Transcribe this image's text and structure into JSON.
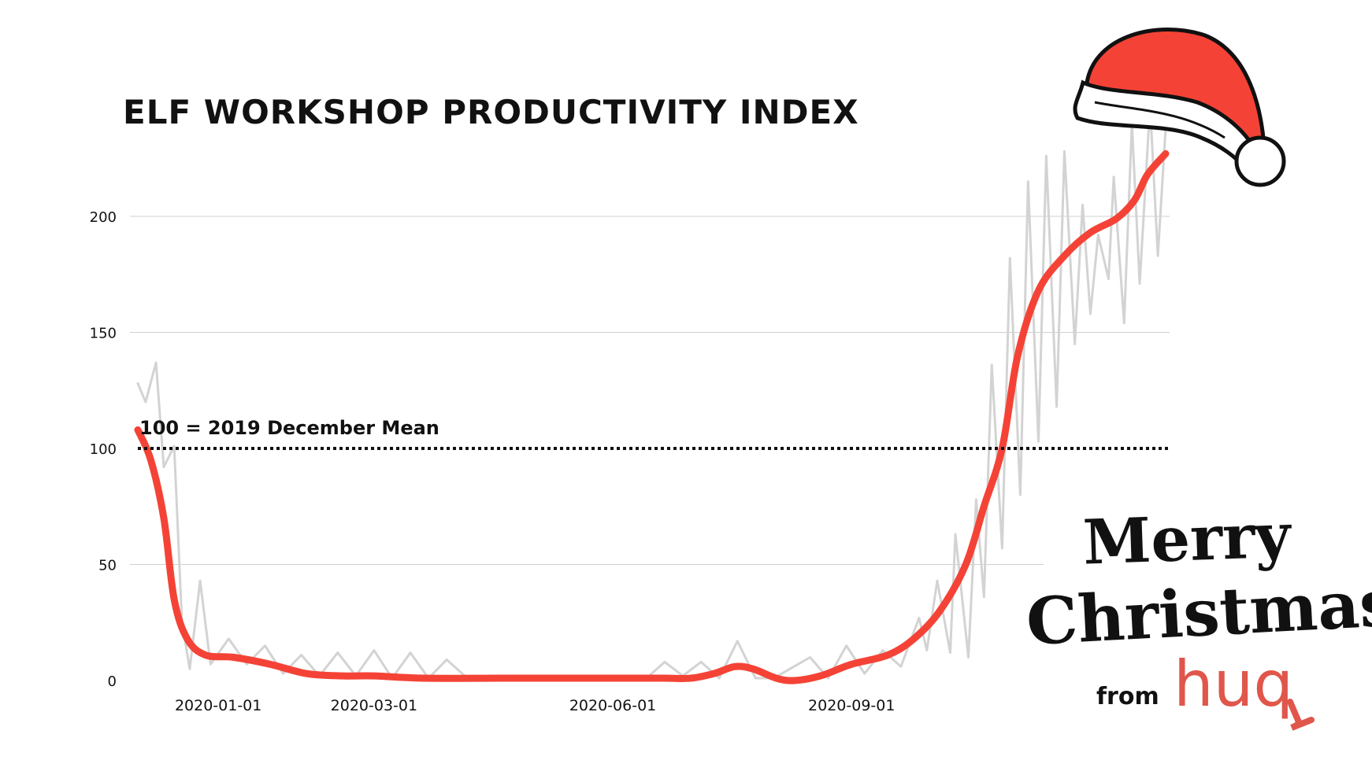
{
  "title": "ELF WORKSHOP PRODUCTIVITY INDEX",
  "annotation": "100 = 2019 December Mean",
  "greeting": {
    "line1": "Merry",
    "line2": "Christmas!",
    "from": "from",
    "logo": "huq"
  },
  "colors": {
    "raw_series": "#d3d3d3",
    "smoothed_series": "#f44336",
    "reference_line": "#111111",
    "gridline": "#d0d0d0",
    "hat_red": "#f44336",
    "brand": "#e0564b"
  },
  "decoration": "santa-hat-icon",
  "chart_data": {
    "type": "line",
    "title": "ELF WORKSHOP PRODUCTIVITY INDEX",
    "xlabel": "",
    "ylabel": "",
    "x_ticks": [
      "2020-01-01",
      "2020-03-01",
      "2020-06-01",
      "2020-09-01"
    ],
    "y_ticks": [
      0,
      50,
      100,
      150,
      200
    ],
    "xlim": [
      "2019-12-01",
      "2020-12-31"
    ],
    "ylim": [
      0,
      210
    ],
    "grid": true,
    "reference_line": {
      "value": 100,
      "label": "100 = 2019 December Mean",
      "style": "dotted"
    },
    "series": [
      {
        "style": "thin-grey",
        "points": [
          [
            "2019-12-01",
            128
          ],
          [
            "2019-12-04",
            120
          ],
          [
            "2019-12-08",
            137
          ],
          [
            "2019-12-11",
            92
          ],
          [
            "2019-12-15",
            101
          ],
          [
            "2019-12-18",
            25
          ],
          [
            "2019-12-21",
            5
          ],
          [
            "2019-12-25",
            43
          ],
          [
            "2019-12-29",
            7
          ],
          [
            "2020-01-05",
            18
          ],
          [
            "2020-01-12",
            7
          ],
          [
            "2020-01-19",
            15
          ],
          [
            "2020-01-26",
            3
          ],
          [
            "2020-02-02",
            11
          ],
          [
            "2020-02-09",
            2
          ],
          [
            "2020-02-16",
            12
          ],
          [
            "2020-02-23",
            2
          ],
          [
            "2020-03-01",
            13
          ],
          [
            "2020-03-08",
            1
          ],
          [
            "2020-03-15",
            12
          ],
          [
            "2020-03-22",
            1
          ],
          [
            "2020-03-29",
            9
          ],
          [
            "2020-04-05",
            2
          ],
          [
            "2020-04-19",
            1
          ],
          [
            "2020-05-17",
            1
          ],
          [
            "2020-06-14",
            1
          ],
          [
            "2020-06-21",
            8
          ],
          [
            "2020-06-28",
            2
          ],
          [
            "2020-07-05",
            8
          ],
          [
            "2020-07-12",
            1
          ],
          [
            "2020-07-19",
            17
          ],
          [
            "2020-07-26",
            1
          ],
          [
            "2020-08-02",
            1
          ],
          [
            "2020-08-16",
            10
          ],
          [
            "2020-08-23",
            1
          ],
          [
            "2020-08-30",
            15
          ],
          [
            "2020-09-06",
            3
          ],
          [
            "2020-09-13",
            13
          ],
          [
            "2020-09-20",
            6
          ],
          [
            "2020-09-27",
            27
          ],
          [
            "2020-09-30",
            13
          ],
          [
            "2020-10-04",
            43
          ],
          [
            "2020-10-09",
            12
          ],
          [
            "2020-10-11",
            63
          ],
          [
            "2020-10-16",
            10
          ],
          [
            "2020-10-19",
            78
          ],
          [
            "2020-10-22",
            36
          ],
          [
            "2020-10-25",
            136
          ],
          [
            "2020-10-29",
            57
          ],
          [
            "2020-11-01",
            182
          ],
          [
            "2020-11-05",
            80
          ],
          [
            "2020-11-08",
            215
          ],
          [
            "2020-11-12",
            103
          ],
          [
            "2020-11-15",
            226
          ],
          [
            "2020-11-19",
            118
          ],
          [
            "2020-11-22",
            228
          ],
          [
            "2020-11-26",
            145
          ],
          [
            "2020-11-29",
            205
          ],
          [
            "2020-12-02",
            158
          ],
          [
            "2020-12-05",
            192
          ],
          [
            "2020-12-09",
            173
          ],
          [
            "2020-12-11",
            217
          ],
          [
            "2020-12-15",
            154
          ],
          [
            "2020-12-18",
            240
          ],
          [
            "2020-12-21",
            171
          ],
          [
            "2020-12-25",
            248
          ],
          [
            "2020-12-28",
            183
          ],
          [
            "2020-12-31",
            238
          ]
        ]
      },
      {
        "style": "thick-red",
        "points": [
          [
            "2019-12-01",
            108
          ],
          [
            "2019-12-06",
            95
          ],
          [
            "2019-12-11",
            70
          ],
          [
            "2019-12-15",
            35
          ],
          [
            "2019-12-20",
            18
          ],
          [
            "2019-12-27",
            11
          ],
          [
            "2020-01-07",
            10
          ],
          [
            "2020-01-21",
            7
          ],
          [
            "2020-02-04",
            3
          ],
          [
            "2020-02-18",
            2
          ],
          [
            "2020-03-01",
            2
          ],
          [
            "2020-03-20",
            1
          ],
          [
            "2020-04-20",
            1
          ],
          [
            "2020-05-20",
            1
          ],
          [
            "2020-06-20",
            1
          ],
          [
            "2020-07-01",
            1
          ],
          [
            "2020-07-10",
            3
          ],
          [
            "2020-07-18",
            6
          ],
          [
            "2020-07-25",
            5
          ],
          [
            "2020-08-03",
            1
          ],
          [
            "2020-08-10",
            0
          ],
          [
            "2020-08-20",
            2
          ],
          [
            "2020-09-01",
            7
          ],
          [
            "2020-09-15",
            11
          ],
          [
            "2020-09-25",
            18
          ],
          [
            "2020-10-05",
            30
          ],
          [
            "2020-10-15",
            50
          ],
          [
            "2020-10-22",
            75
          ],
          [
            "2020-10-29",
            100
          ],
          [
            "2020-11-04",
            140
          ],
          [
            "2020-11-12",
            168
          ],
          [
            "2020-11-22",
            183
          ],
          [
            "2020-12-02",
            193
          ],
          [
            "2020-12-12",
            199
          ],
          [
            "2020-12-19",
            207
          ],
          [
            "2020-12-24",
            218
          ],
          [
            "2020-12-31",
            227
          ]
        ]
      }
    ]
  }
}
